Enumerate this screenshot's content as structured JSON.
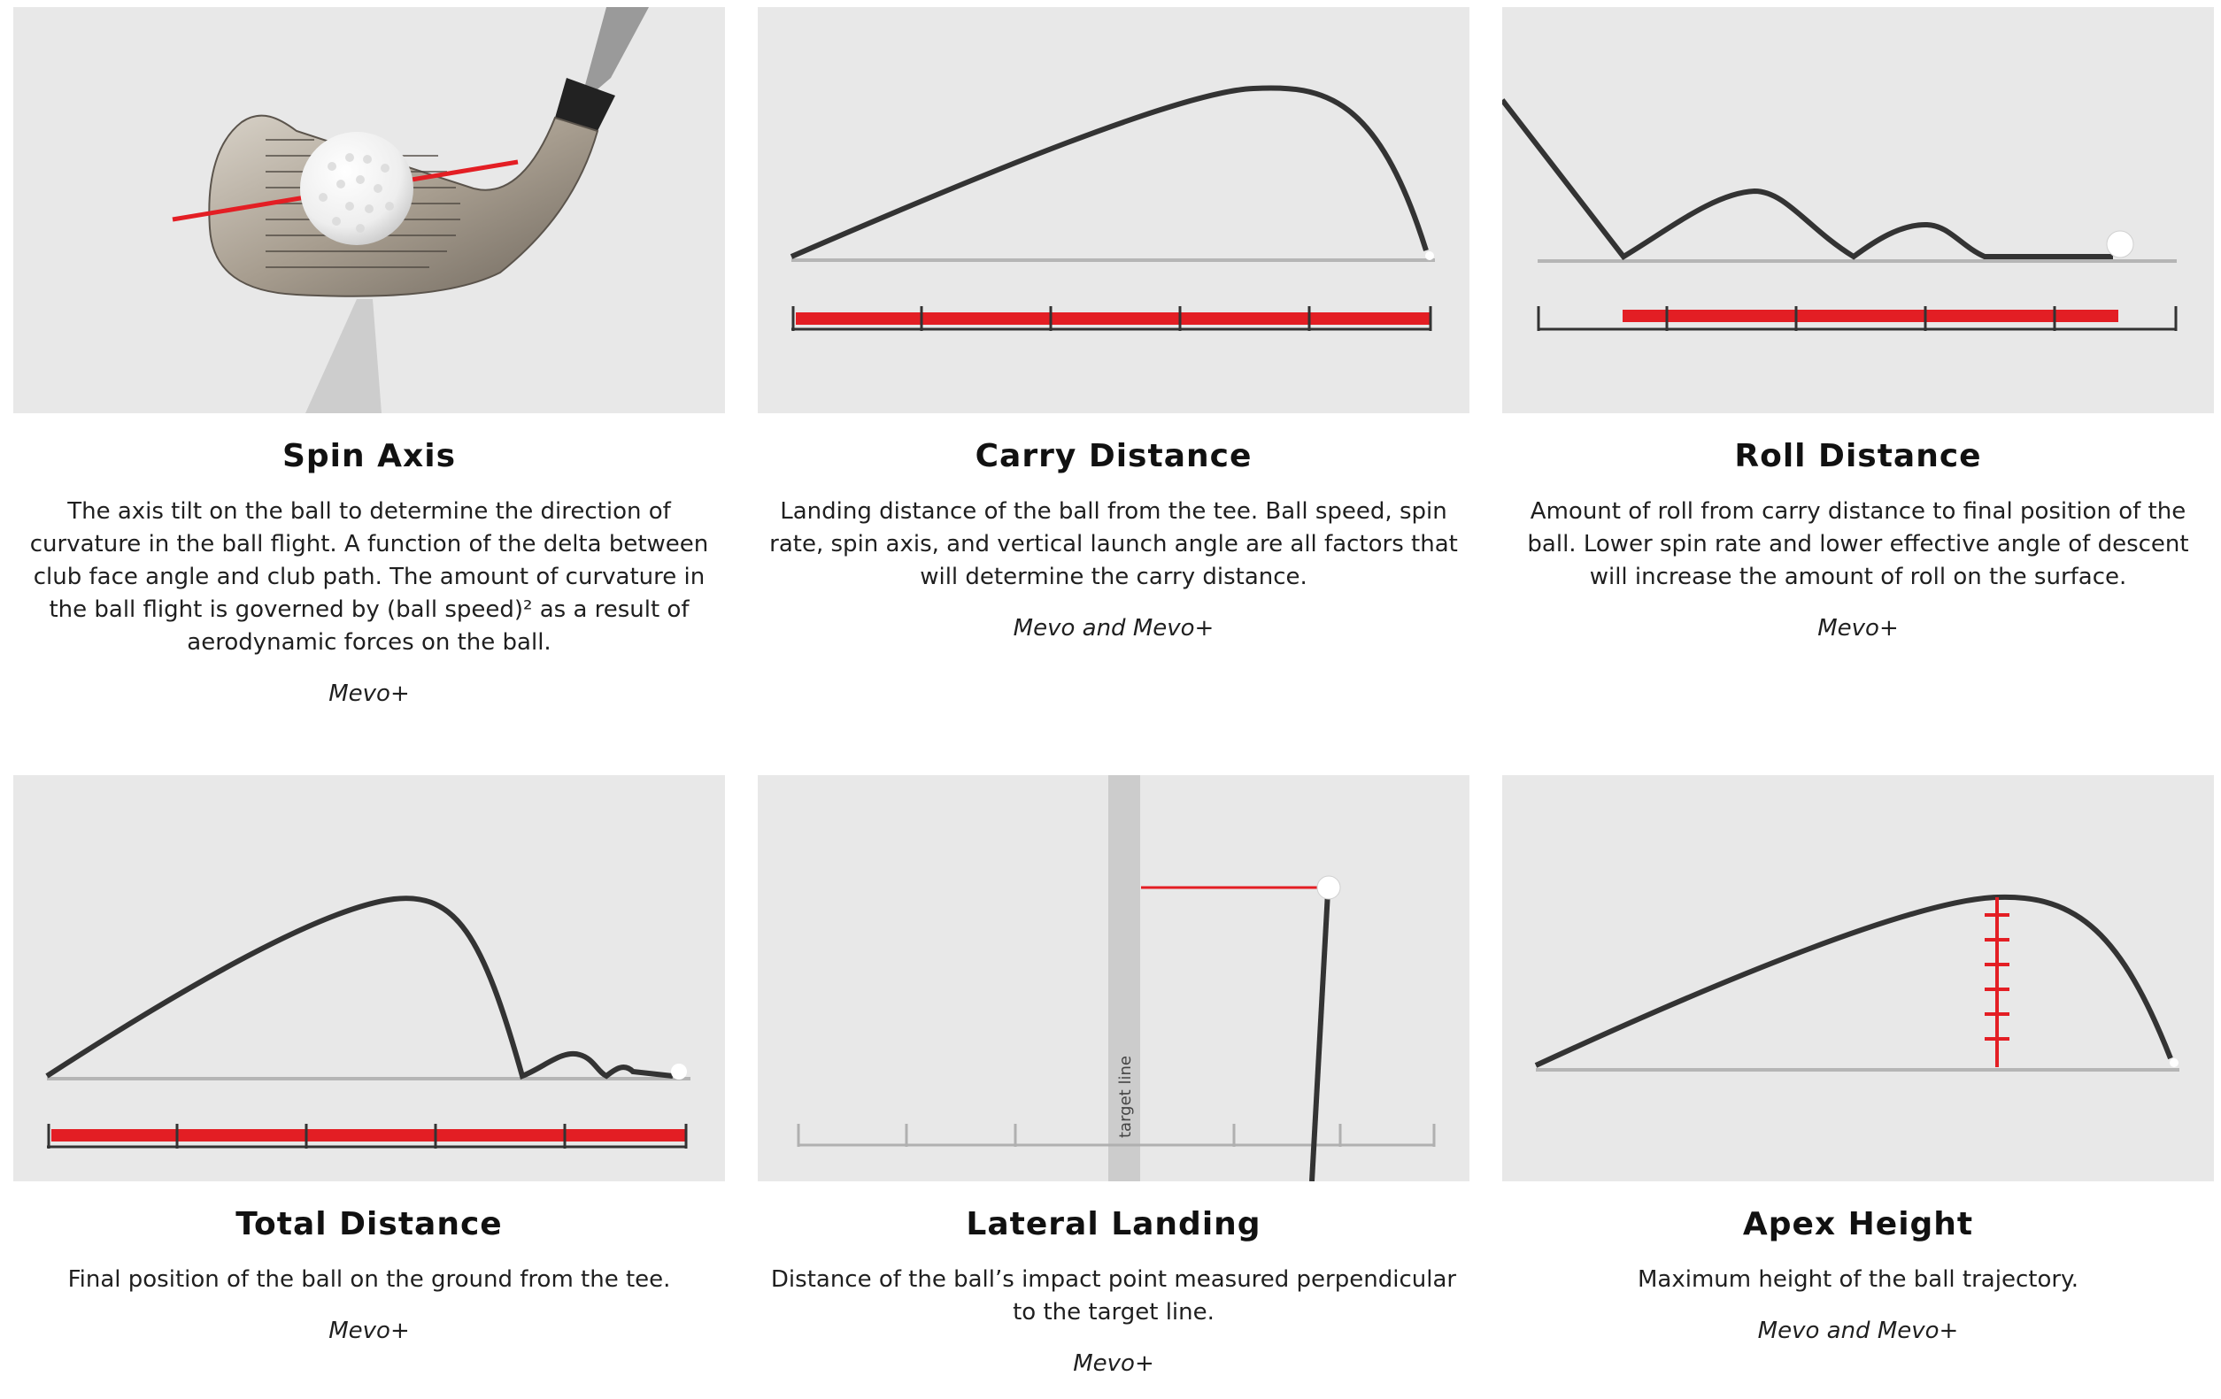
{
  "cards": [
    {
      "title": "Spin Axis",
      "description": "The axis tilt on the ball to determine the direction of curvature in the ball flight. A function of the delta between club face angle and club path. The amount of curvature in the ball flight is governed by (ball speed)² as a result of aerodynamic forces on the ball.",
      "availability": "Mevo+",
      "illustration": "golf-iron-with-ball-and-spin-axis-line"
    },
    {
      "title": "Carry Distance",
      "description": "Landing distance of the ball from the tee. Ball speed, spin rate, spin axis, and vertical launch angle are all factors that will determine the carry distance.",
      "availability": "Mevo and Mevo+",
      "illustration": "ball-flight-arc-with-carry-scale"
    },
    {
      "title": "Roll Distance",
      "description": "Amount of roll from carry distance to final position of the ball. Lower spin rate and lower effective angle of descent will increase the amount of roll on the surface.",
      "availability": "Mevo+",
      "illustration": "ball-bounces-with-roll-scale"
    },
    {
      "title": "Total Distance",
      "description": "Final position of the ball on the ground from the tee.",
      "availability": "Mevo+",
      "illustration": "ball-flight-and-roll-with-total-scale"
    },
    {
      "title": "Lateral Landing",
      "description": "Distance of the ball’s impact point measured perpendicular to the target line.",
      "availability": "Mevo+",
      "illustration": "top-view-target-line-offset",
      "target_line_label": "target line"
    },
    {
      "title": "Apex Height",
      "description": "Maximum height of the ball trajectory.",
      "availability": "Mevo and Mevo+",
      "illustration": "ball-flight-arc-with-apex-height-marker"
    }
  ],
  "colors": {
    "panel_bg": "#e8e8e8",
    "trajectory": "#333333",
    "accent_red": "#e31e24",
    "ground": "#b5b5b5"
  }
}
